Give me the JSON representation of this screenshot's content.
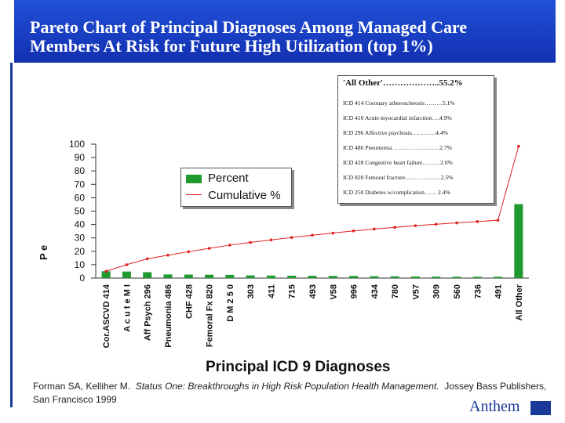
{
  "title": {
    "line1": "Pareto Chart of Principal Diagnoses Among Managed Care",
    "line2": "Members At Risk for Future High Utilization (top 1%)"
  },
  "legend": {
    "percent": "Percent",
    "cumulative": "Cumulative %"
  },
  "callout": {
    "header": "'All Other'………………..55.2%",
    "lines": [
      "ICD 414 Coronary atherosclerosis………5.1%",
      "ICD 410 Acute myocardial infarction….4.9%",
      "ICD 296 Affective psychosis…………4.4%",
      "ICD 486 Pneumonia……………………2.7%",
      "ICD 428 Congestive heart failure………2.6%",
      "ICD 820 Femoral fracture………………2.5%",
      "ICD 250 Diabetes w/complication…… 2.4%"
    ]
  },
  "citation": {
    "authors": "Forman SA, Kelliher M.",
    "work": "Status One: Breakthroughs in High Risk Population Health Management.",
    "publisher": "Jossey Bass Publishers, San Francisco 1999"
  },
  "logo": "Anthem",
  "chart_data": {
    "type": "bar",
    "title": "",
    "xlabel": "Principal ICD 9 Diagnoses",
    "ylabel": "P e",
    "ylim": [
      0,
      100
    ],
    "yticks": [
      0,
      10,
      20,
      30,
      40,
      50,
      60,
      70,
      80,
      90,
      100
    ],
    "categories": [
      "Cor.ASCVD 414",
      "A c u t e M I",
      "Aff Psych 296",
      "Pneumonia 486",
      "CHF 428",
      "Femoral Fx 820",
      "D M 2 5 0",
      "303",
      "411",
      "715",
      "493",
      "V58",
      "996",
      "434",
      "780",
      "V57",
      "309",
      "560",
      "736",
      "491",
      "All Other"
    ],
    "series": [
      {
        "name": "Percent",
        "type": "bar",
        "color": "#1f9a2f",
        "values": [
          5.1,
          4.9,
          4.4,
          2.7,
          2.6,
          2.5,
          2.4,
          2.0,
          1.9,
          1.8,
          1.7,
          1.6,
          1.6,
          1.4,
          1.3,
          1.2,
          1.1,
          1.0,
          1.0,
          1.0,
          55.2
        ]
      },
      {
        "name": "Cumulative %",
        "type": "line",
        "color": "#e02020",
        "values": [
          5.1,
          10.0,
          14.4,
          17.1,
          19.7,
          22.2,
          24.6,
          26.6,
          28.5,
          30.3,
          32.0,
          33.6,
          35.2,
          36.6,
          37.9,
          39.1,
          40.2,
          41.2,
          42.2,
          43.2,
          98.4
        ]
      }
    ],
    "grid": false,
    "legend_position": "center-left"
  }
}
